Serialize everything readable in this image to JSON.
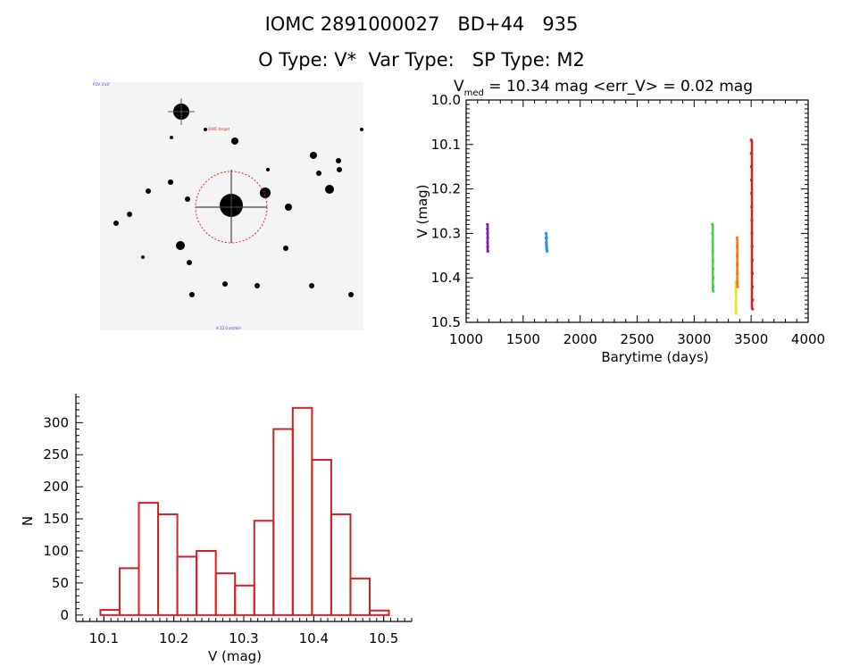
{
  "header": {
    "title": "IOMC 2891000027   BD+44   935",
    "subtitle": "O Type: V*  Var Type:   SP Type: M2"
  },
  "image_panel": {
    "labels": [
      "FOV 3'x3'",
      "IOMC target",
      "A  12.0 arcmin"
    ]
  },
  "chart_data": [
    {
      "type": "scatter",
      "title_main": "V",
      "title_sub": "med",
      "title_rest": " = 10.34 mag <err_V> = 0.02 mag",
      "xlabel": "Barytime (days)",
      "ylabel": "V (mag)",
      "xlim": [
        1000,
        4000
      ],
      "ylim": [
        10.5,
        10.0
      ],
      "inverted_y": true,
      "xticks": [
        1000,
        1500,
        2000,
        2500,
        3000,
        3500,
        4000
      ],
      "yticks": [
        "10.0",
        "10.1",
        "10.2",
        "10.3",
        "10.4",
        "10.5"
      ],
      "series": [
        {
          "color": "#7a20a8",
          "points": [
            [
              1187,
              10.28
            ],
            [
              1187,
              10.29
            ],
            [
              1188,
              10.3
            ],
            [
              1189,
              10.31
            ],
            [
              1188,
              10.32
            ],
            [
              1189,
              10.33
            ],
            [
              1190,
              10.34
            ]
          ]
        },
        {
          "color": "#2f93e8",
          "points": [
            [
              1700,
              10.3
            ],
            [
              1701,
              10.31
            ],
            [
              1703,
              10.32
            ],
            [
              1704,
              10.325
            ],
            [
              1706,
              10.33
            ],
            [
              1708,
              10.335
            ],
            [
              1710,
              10.34
            ],
            [
              1705,
              10.31
            ]
          ]
        },
        {
          "color": "#3ed63e",
          "points": [
            [
              3160,
              10.28
            ],
            [
              3161,
              10.3
            ],
            [
              3162,
              10.32
            ],
            [
              3163,
              10.34
            ],
            [
              3164,
              10.36
            ],
            [
              3165,
              10.38
            ],
            [
              3166,
              10.4
            ],
            [
              3167,
              10.42
            ],
            [
              3168,
              10.43
            ]
          ]
        },
        {
          "color": "#e8e820",
          "points": [
            [
              3365,
              10.41
            ],
            [
              3366,
              10.43
            ],
            [
              3367,
              10.45
            ],
            [
              3368,
              10.47
            ],
            [
              3369,
              10.48
            ]
          ]
        },
        {
          "color": "#f07a10",
          "points": [
            [
              3375,
              10.31
            ],
            [
              3376,
              10.33
            ],
            [
              3377,
              10.35
            ],
            [
              3378,
              10.37
            ],
            [
              3379,
              10.39
            ],
            [
              3380,
              10.41
            ],
            [
              3381,
              10.42
            ]
          ]
        },
        {
          "color": "#d42020",
          "points": [
            [
              3500,
              10.09
            ],
            [
              3501,
              10.12
            ],
            [
              3502,
              10.15
            ],
            [
              3503,
              10.18
            ],
            [
              3504,
              10.21
            ],
            [
              3505,
              10.24
            ],
            [
              3506,
              10.27
            ],
            [
              3507,
              10.3
            ],
            [
              3508,
              10.33
            ],
            [
              3509,
              10.36
            ],
            [
              3510,
              10.39
            ],
            [
              3511,
              10.42
            ],
            [
              3512,
              10.45
            ],
            [
              3513,
              10.47
            ]
          ]
        }
      ]
    },
    {
      "type": "bar",
      "histogram": true,
      "xlabel": "V (mag)",
      "ylabel": "N",
      "xlim": [
        10.06,
        10.54
      ],
      "ylim": [
        -10,
        345
      ],
      "xticks": [
        "10.1",
        "10.2",
        "10.3",
        "10.4",
        "10.5"
      ],
      "yticks": [
        "0",
        "50",
        "100",
        "150",
        "200",
        "250",
        "300"
      ],
      "bin_width": 0.0275,
      "bin_edges": [
        10.095,
        10.1225,
        10.15,
        10.1775,
        10.205,
        10.2325,
        10.26,
        10.2875,
        10.315,
        10.3425,
        10.37,
        10.3975,
        10.425,
        10.4525,
        10.48
      ],
      "values": [
        8,
        73,
        175,
        157,
        91,
        100,
        65,
        46,
        147,
        290,
        323,
        242,
        157,
        57,
        7
      ],
      "bar_color": "#d42020"
    }
  ]
}
